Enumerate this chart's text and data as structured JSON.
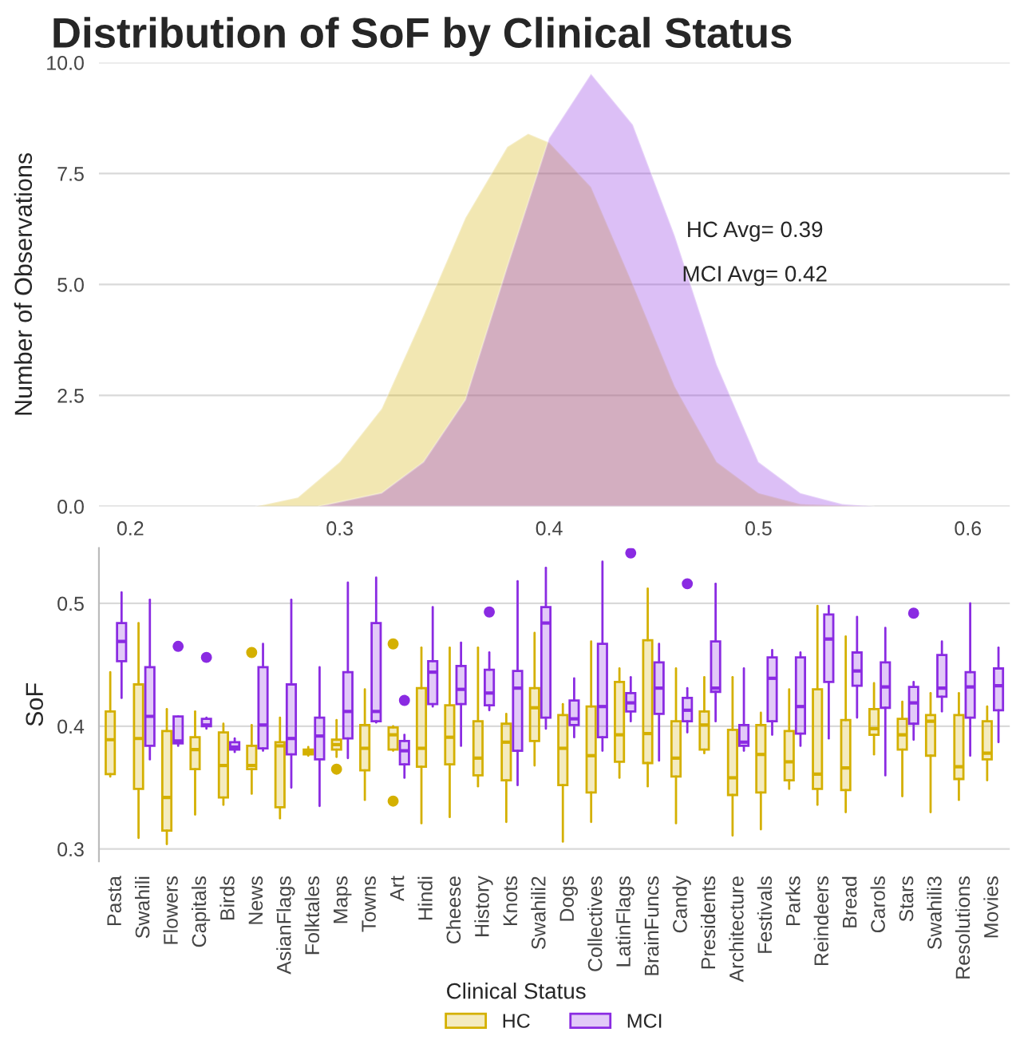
{
  "chart_data": [
    {
      "type": "area",
      "title": "Distribution of SoF by Clinical Status",
      "ylabel": "Number of Observations",
      "xlim": [
        0.185,
        0.62
      ],
      "xticks": [
        0.2,
        0.3,
        0.4,
        0.5,
        0.6
      ],
      "ylim": [
        0,
        10
      ],
      "yticks": [
        {
          "value": 0,
          "label": "0.0"
        },
        2.5,
        {
          "value": 5,
          "label": "5.0"
        },
        7.5,
        {
          "value": 10,
          "label": "10.0"
        }
      ],
      "grid": "y",
      "annotations": [
        "HC Avg= 0.39",
        "MCI Avg= 0.42"
      ],
      "series": [
        {
          "color": "#d4b000",
          "x": [
            0.26,
            0.28,
            0.3,
            0.32,
            0.34,
            0.36,
            0.38,
            0.39,
            0.4,
            0.42,
            0.44,
            0.46,
            0.48,
            0.5,
            0.52,
            0.55
          ],
          "values": [
            0.0,
            0.2,
            1.0,
            2.2,
            4.3,
            6.5,
            8.1,
            8.4,
            8.2,
            7.2,
            5.0,
            2.7,
            1.0,
            0.3,
            0.05,
            0.0
          ]
        },
        {
          "color": "#8a2be2",
          "x": [
            0.29,
            0.32,
            0.34,
            0.36,
            0.38,
            0.4,
            0.42,
            0.44,
            0.46,
            0.48,
            0.5,
            0.52,
            0.54,
            0.555
          ],
          "values": [
            0.0,
            0.3,
            1.0,
            2.4,
            5.4,
            8.3,
            9.75,
            8.6,
            6.1,
            3.2,
            1.0,
            0.3,
            0.05,
            0.0
          ]
        }
      ]
    },
    {
      "type": "box",
      "ylabel": "SoF",
      "legend_title": "Clinical Status",
      "legend": "bottom",
      "grid": "y",
      "ylim": [
        0.29,
        0.545
      ],
      "yticks": [
        0.3,
        0.4,
        0.5
      ],
      "categories": [
        "Pasta",
        "Swahili",
        "Flowers",
        "Capitals",
        "Birds",
        "News",
        "AsianFlags",
        "Folktales",
        "Maps",
        "Towns",
        "Art",
        "Hindi",
        "Cheese",
        "History",
        "Knots",
        "Swahili2",
        "Dogs",
        "Collectives",
        "LatinFlags",
        "BrainFuncs",
        "Candy",
        "Presidents",
        "Architecture",
        "Festivals",
        "Parks",
        "Reindeers",
        "Bread",
        "Carols",
        "Stars",
        "Swahili3",
        "Resolutions",
        "Movies"
      ],
      "series": [
        {
          "name": "HC",
          "color": "#d4b000",
          "boxes": [
            {
              "low": 0.359,
              "q1": 0.361,
              "median": 0.389,
              "q3": 0.412,
              "high": 0.444
            },
            {
              "low": 0.309,
              "q1": 0.349,
              "median": 0.39,
              "q3": 0.434,
              "high": 0.484
            },
            {
              "low": 0.304,
              "q1": 0.315,
              "median": 0.342,
              "q3": 0.396,
              "high": 0.414
            },
            {
              "low": 0.328,
              "q1": 0.365,
              "median": 0.381,
              "q3": 0.391,
              "high": 0.412
            },
            {
              "low": 0.336,
              "q1": 0.342,
              "median": 0.368,
              "q3": 0.395,
              "high": 0.402
            },
            {
              "low": 0.345,
              "q1": 0.365,
              "median": 0.368,
              "q3": 0.384,
              "high": 0.401,
              "outliers": [
                0.46
              ]
            },
            {
              "low": 0.325,
              "q1": 0.334,
              "median": 0.384,
              "q3": 0.387,
              "high": 0.407
            },
            {
              "low": 0.376,
              "q1": 0.377,
              "median": 0.379,
              "q3": 0.381,
              "high": 0.383
            },
            {
              "low": 0.375,
              "q1": 0.381,
              "median": 0.385,
              "q3": 0.389,
              "high": 0.405,
              "outliers": [
                0.365
              ]
            },
            {
              "low": 0.34,
              "q1": 0.364,
              "median": 0.382,
              "q3": 0.401,
              "high": 0.43
            },
            {
              "low": 0.38,
              "q1": 0.381,
              "median": 0.393,
              "q3": 0.399,
              "high": 0.4,
              "outliers": [
                0.467,
                0.339
              ]
            },
            {
              "low": 0.321,
              "q1": 0.367,
              "median": 0.382,
              "q3": 0.431,
              "high": 0.464
            },
            {
              "low": 0.326,
              "q1": 0.369,
              "median": 0.391,
              "q3": 0.417,
              "high": 0.464
            },
            {
              "low": 0.351,
              "q1": 0.36,
              "median": 0.374,
              "q3": 0.404,
              "high": 0.464
            },
            {
              "low": 0.322,
              "q1": 0.356,
              "median": 0.387,
              "q3": 0.402,
              "high": 0.41
            },
            {
              "low": 0.368,
              "q1": 0.388,
              "median": 0.415,
              "q3": 0.431,
              "high": 0.476
            },
            {
              "low": 0.306,
              "q1": 0.352,
              "median": 0.382,
              "q3": 0.409,
              "high": 0.418
            },
            {
              "low": 0.322,
              "q1": 0.346,
              "median": 0.376,
              "q3": 0.416,
              "high": 0.469
            },
            {
              "low": 0.358,
              "q1": 0.371,
              "median": 0.393,
              "q3": 0.436,
              "high": 0.447
            },
            {
              "low": 0.351,
              "q1": 0.37,
              "median": 0.394,
              "q3": 0.47,
              "high": 0.512
            },
            {
              "low": 0.321,
              "q1": 0.359,
              "median": 0.374,
              "q3": 0.404,
              "high": 0.447
            },
            {
              "low": 0.378,
              "q1": 0.381,
              "median": 0.401,
              "q3": 0.412,
              "high": 0.44
            },
            {
              "low": 0.311,
              "q1": 0.344,
              "median": 0.358,
              "q3": 0.397,
              "high": 0.44
            },
            {
              "low": 0.316,
              "q1": 0.346,
              "median": 0.377,
              "q3": 0.401,
              "high": 0.411
            },
            {
              "low": 0.349,
              "q1": 0.356,
              "median": 0.371,
              "q3": 0.396,
              "high": 0.43
            },
            {
              "low": 0.336,
              "q1": 0.349,
              "median": 0.361,
              "q3": 0.43,
              "high": 0.498
            },
            {
              "low": 0.33,
              "q1": 0.348,
              "median": 0.366,
              "q3": 0.405,
              "high": 0.473
            },
            {
              "low": 0.377,
              "q1": 0.393,
              "median": 0.398,
              "q3": 0.414,
              "high": 0.435
            },
            {
              "low": 0.343,
              "q1": 0.381,
              "median": 0.393,
              "q3": 0.406,
              "high": 0.42
            },
            {
              "low": 0.33,
              "q1": 0.376,
              "median": 0.404,
              "q3": 0.409,
              "high": 0.427
            },
            {
              "low": 0.34,
              "q1": 0.357,
              "median": 0.367,
              "q3": 0.409,
              "high": 0.427
            },
            {
              "low": 0.356,
              "q1": 0.373,
              "median": 0.378,
              "q3": 0.404,
              "high": 0.416
            }
          ]
        },
        {
          "name": "MCI",
          "color": "#8a2be2",
          "boxes": [
            {
              "low": 0.423,
              "q1": 0.453,
              "median": 0.469,
              "q3": 0.484,
              "high": 0.509
            },
            {
              "low": 0.373,
              "q1": 0.384,
              "median": 0.408,
              "q3": 0.448,
              "high": 0.503
            },
            {
              "low": 0.384,
              "q1": 0.386,
              "median": 0.388,
              "q3": 0.408,
              "high": 0.408,
              "outliers": [
                0.465
              ]
            },
            {
              "low": 0.398,
              "q1": 0.4,
              "median": 0.401,
              "q3": 0.406,
              "high": 0.407,
              "outliers": [
                0.456
              ]
            },
            {
              "low": 0.379,
              "q1": 0.381,
              "median": 0.383,
              "q3": 0.387,
              "high": 0.39
            },
            {
              "low": 0.38,
              "q1": 0.382,
              "median": 0.401,
              "q3": 0.448,
              "high": 0.467
            },
            {
              "low": 0.35,
              "q1": 0.377,
              "median": 0.39,
              "q3": 0.434,
              "high": 0.503
            },
            {
              "low": 0.335,
              "q1": 0.373,
              "median": 0.392,
              "q3": 0.407,
              "high": 0.448
            },
            {
              "low": 0.374,
              "q1": 0.39,
              "median": 0.412,
              "q3": 0.444,
              "high": 0.517
            },
            {
              "low": 0.403,
              "q1": 0.404,
              "median": 0.412,
              "q3": 0.484,
              "high": 0.521
            },
            {
              "low": 0.358,
              "q1": 0.369,
              "median": 0.38,
              "q3": 0.388,
              "high": 0.393,
              "outliers": [
                0.421
              ]
            },
            {
              "low": 0.416,
              "q1": 0.418,
              "median": 0.444,
              "q3": 0.453,
              "high": 0.497
            },
            {
              "low": 0.384,
              "q1": 0.418,
              "median": 0.43,
              "q3": 0.449,
              "high": 0.468
            },
            {
              "low": 0.413,
              "q1": 0.417,
              "median": 0.427,
              "q3": 0.446,
              "high": 0.46,
              "outliers": [
                0.493
              ]
            },
            {
              "low": 0.352,
              "q1": 0.38,
              "median": 0.431,
              "q3": 0.445,
              "high": 0.518
            },
            {
              "low": 0.398,
              "q1": 0.407,
              "median": 0.484,
              "q3": 0.497,
              "high": 0.529
            },
            {
              "low": 0.391,
              "q1": 0.401,
              "median": 0.406,
              "q3": 0.421,
              "high": 0.439
            },
            {
              "low": 0.38,
              "q1": 0.391,
              "median": 0.416,
              "q3": 0.467,
              "high": 0.534
            },
            {
              "low": 0.404,
              "q1": 0.412,
              "median": 0.419,
              "q3": 0.427,
              "high": 0.44,
              "outliers": [
                0.541
              ]
            },
            {
              "low": 0.372,
              "q1": 0.41,
              "median": 0.431,
              "q3": 0.452,
              "high": 0.467
            },
            {
              "low": 0.395,
              "q1": 0.404,
              "median": 0.413,
              "q3": 0.423,
              "high": 0.431,
              "outliers": [
                0.516
              ]
            },
            {
              "low": 0.404,
              "q1": 0.428,
              "median": 0.431,
              "q3": 0.469,
              "high": 0.516
            },
            {
              "low": 0.38,
              "q1": 0.384,
              "median": 0.387,
              "q3": 0.401,
              "high": 0.447
            },
            {
              "low": 0.393,
              "q1": 0.404,
              "median": 0.439,
              "q3": 0.456,
              "high": 0.462
            },
            {
              "low": 0.384,
              "q1": 0.394,
              "median": 0.416,
              "q3": 0.456,
              "high": 0.46
            },
            {
              "low": 0.39,
              "q1": 0.436,
              "median": 0.471,
              "q3": 0.491,
              "high": 0.498
            },
            {
              "low": 0.407,
              "q1": 0.433,
              "median": 0.445,
              "q3": 0.46,
              "high": 0.489
            },
            {
              "low": 0.36,
              "q1": 0.415,
              "median": 0.432,
              "q3": 0.452,
              "high": 0.48
            },
            {
              "low": 0.389,
              "q1": 0.402,
              "median": 0.419,
              "q3": 0.432,
              "high": 0.436,
              "outliers": [
                0.492
              ]
            },
            {
              "low": 0.412,
              "q1": 0.424,
              "median": 0.431,
              "q3": 0.458,
              "high": 0.469
            },
            {
              "low": 0.376,
              "q1": 0.407,
              "median": 0.432,
              "q3": 0.444,
              "high": 0.5
            },
            {
              "low": 0.387,
              "q1": 0.413,
              "median": 0.433,
              "q3": 0.447,
              "high": 0.464
            }
          ]
        }
      ]
    }
  ]
}
